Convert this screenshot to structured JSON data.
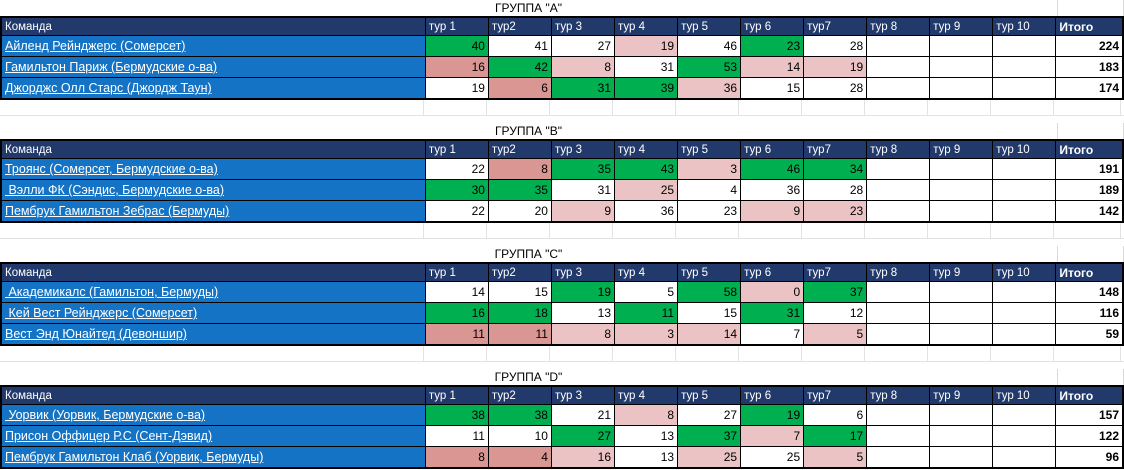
{
  "colors": {
    "header_bg": "#22396B",
    "header_text": "#FFFFFF",
    "team_bg": "#1473C4",
    "team_text": "#FFFFFF",
    "green": "#00B050",
    "dark_pink": "#D99693",
    "light_pink": "#EBC3C4",
    "white": "#FFFFFF",
    "table_border": "#000000",
    "gridline": "#E3E3E3"
  },
  "columns": {
    "team": "Команда",
    "rounds": [
      "тур 1",
      "тур2",
      "тур 3",
      "тур 4",
      "тур 5",
      "тур 6",
      "тур7",
      "тур 8",
      "тур 9",
      "тур 10"
    ],
    "total": "Итого"
  },
  "groups": [
    {
      "title": "ГРУППА \"А\"",
      "teams": [
        {
          "name": "Айленд Рейнджерс (Сомерсет)",
          "scores": [
            {
              "v": 40,
              "c": "green"
            },
            {
              "v": 41,
              "c": "white"
            },
            {
              "v": 27,
              "c": "white"
            },
            {
              "v": 19,
              "c": "light_pink"
            },
            {
              "v": 46,
              "c": "white"
            },
            {
              "v": 23,
              "c": "green"
            },
            {
              "v": 28,
              "c": "white"
            },
            null,
            null,
            null
          ],
          "total": 224
        },
        {
          "name": "Гамильтон Париж (Бермудские о-ва)",
          "scores": [
            {
              "v": 16,
              "c": "dark_pink"
            },
            {
              "v": 42,
              "c": "green"
            },
            {
              "v": 8,
              "c": "light_pink"
            },
            {
              "v": 31,
              "c": "white"
            },
            {
              "v": 53,
              "c": "green"
            },
            {
              "v": 14,
              "c": "light_pink"
            },
            {
              "v": 19,
              "c": "light_pink"
            },
            null,
            null,
            null
          ],
          "total": 183
        },
        {
          "name": "Джорджс Олл Старс (Джордж Таун)",
          "scores": [
            {
              "v": 19,
              "c": "white"
            },
            {
              "v": 6,
              "c": "dark_pink"
            },
            {
              "v": 31,
              "c": "green"
            },
            {
              "v": 39,
              "c": "green"
            },
            {
              "v": 36,
              "c": "light_pink"
            },
            {
              "v": 15,
              "c": "white"
            },
            {
              "v": 28,
              "c": "white"
            },
            null,
            null,
            null
          ],
          "total": 174
        }
      ]
    },
    {
      "title": "ГРУППА \"В\"",
      "teams": [
        {
          "name": "Троянс (Сомерсет, Бермудские о-ва)",
          "scores": [
            {
              "v": 22,
              "c": "white"
            },
            {
              "v": 8,
              "c": "dark_pink"
            },
            {
              "v": 35,
              "c": "green"
            },
            {
              "v": 43,
              "c": "green"
            },
            {
              "v": 3,
              "c": "light_pink"
            },
            {
              "v": 46,
              "c": "green"
            },
            {
              "v": 34,
              "c": "green"
            },
            null,
            null,
            null
          ],
          "total": 191
        },
        {
          "name": " Вэлли ФК (Сэндис, Бермудские о-ва)",
          "scores": [
            {
              "v": 30,
              "c": "green"
            },
            {
              "v": 35,
              "c": "green"
            },
            {
              "v": 31,
              "c": "white"
            },
            {
              "v": 25,
              "c": "light_pink"
            },
            {
              "v": 4,
              "c": "white"
            },
            {
              "v": 36,
              "c": "white"
            },
            {
              "v": 28,
              "c": "white"
            },
            null,
            null,
            null
          ],
          "total": 189
        },
        {
          "name": "Пембрук Гамильтон Зебрас (Бермуды)",
          "scores": [
            {
              "v": 22,
              "c": "white"
            },
            {
              "v": 20,
              "c": "white"
            },
            {
              "v": 9,
              "c": "light_pink"
            },
            {
              "v": 36,
              "c": "white"
            },
            {
              "v": 23,
              "c": "white"
            },
            {
              "v": 9,
              "c": "light_pink"
            },
            {
              "v": 23,
              "c": "light_pink"
            },
            null,
            null,
            null
          ],
          "total": 142
        }
      ]
    },
    {
      "title": "ГРУППА \"С\"",
      "teams": [
        {
          "name": " Академикалс (Гамильтон, Бермуды)",
          "scores": [
            {
              "v": 14,
              "c": "white"
            },
            {
              "v": 15,
              "c": "white"
            },
            {
              "v": 19,
              "c": "green"
            },
            {
              "v": 5,
              "c": "white"
            },
            {
              "v": 58,
              "c": "green"
            },
            {
              "v": 0,
              "c": "light_pink"
            },
            {
              "v": 37,
              "c": "green"
            },
            null,
            null,
            null
          ],
          "total": 148
        },
        {
          "name": " Кей Вест Рейнджерс (Сомерсет)",
          "scores": [
            {
              "v": 16,
              "c": "green"
            },
            {
              "v": 18,
              "c": "green"
            },
            {
              "v": 13,
              "c": "white"
            },
            {
              "v": 11,
              "c": "green"
            },
            {
              "v": 15,
              "c": "white"
            },
            {
              "v": 31,
              "c": "green"
            },
            {
              "v": 12,
              "c": "white"
            },
            null,
            null,
            null
          ],
          "total": 116
        },
        {
          "name": "Вест Энд Юнайтед (Девоншир)",
          "scores": [
            {
              "v": 11,
              "c": "dark_pink"
            },
            {
              "v": 11,
              "c": "dark_pink"
            },
            {
              "v": 8,
              "c": "light_pink"
            },
            {
              "v": 3,
              "c": "light_pink"
            },
            {
              "v": 14,
              "c": "light_pink"
            },
            {
              "v": 7,
              "c": "white"
            },
            {
              "v": 5,
              "c": "light_pink"
            },
            null,
            null,
            null
          ],
          "total": 59
        }
      ]
    },
    {
      "title": "ГРУППА \"D\"",
      "teams": [
        {
          "name": " Уорвик (Уорвик, Бермудские о-ва)",
          "scores": [
            {
              "v": 38,
              "c": "green"
            },
            {
              "v": 38,
              "c": "green"
            },
            {
              "v": 21,
              "c": "white"
            },
            {
              "v": 8,
              "c": "light_pink"
            },
            {
              "v": 27,
              "c": "white"
            },
            {
              "v": 19,
              "c": "green"
            },
            {
              "v": 6,
              "c": "white"
            },
            null,
            null,
            null
          ],
          "total": 157
        },
        {
          "name": "Присон Оффицер Р.С (Сент-Дэвид)",
          "scores": [
            {
              "v": 11,
              "c": "white"
            },
            {
              "v": 10,
              "c": "white"
            },
            {
              "v": 27,
              "c": "green"
            },
            {
              "v": 13,
              "c": "white"
            },
            {
              "v": 37,
              "c": "green"
            },
            {
              "v": 7,
              "c": "light_pink"
            },
            {
              "v": 17,
              "c": "green"
            },
            null,
            null,
            null
          ],
          "total": 122
        },
        {
          "name": "Пембрук Гамильтон Клаб (Уорвик, Бермуды)",
          "scores": [
            {
              "v": 8,
              "c": "dark_pink"
            },
            {
              "v": 4,
              "c": "dark_pink"
            },
            {
              "v": 16,
              "c": "light_pink"
            },
            {
              "v": 13,
              "c": "white"
            },
            {
              "v": 25,
              "c": "light_pink"
            },
            {
              "v": 25,
              "c": "white"
            },
            {
              "v": 5,
              "c": "light_pink"
            },
            null,
            null,
            null
          ],
          "total": 96
        }
      ]
    }
  ]
}
